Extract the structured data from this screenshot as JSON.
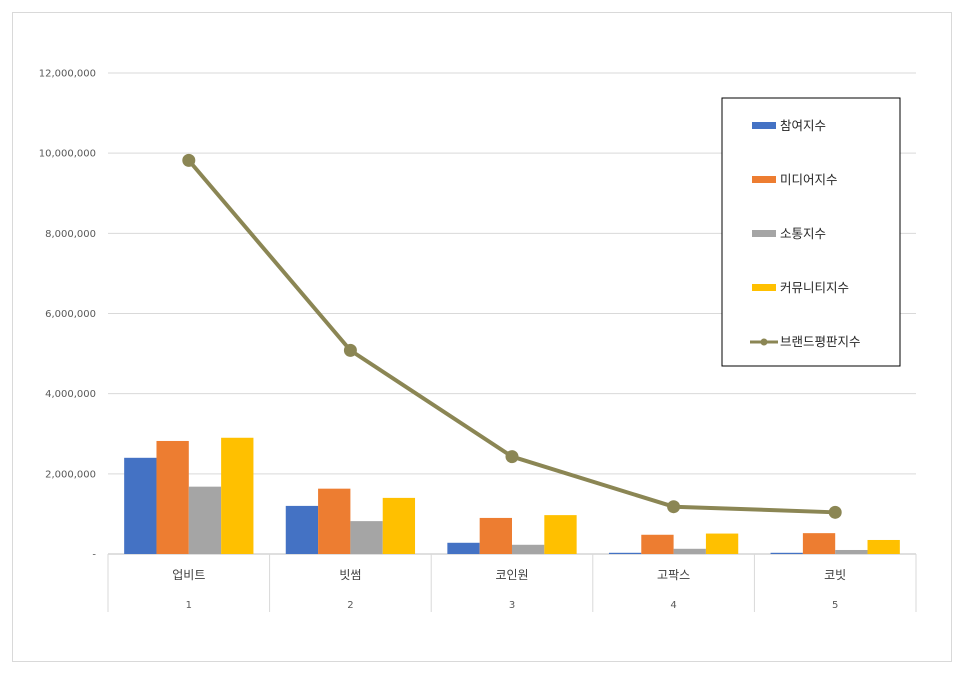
{
  "chart_data": {
    "type": "bar",
    "categories": [
      "업비트",
      "빗썸",
      "코인원",
      "고팍스",
      "코빗"
    ],
    "category_ranks": [
      "1",
      "2",
      "3",
      "4",
      "5"
    ],
    "y_ticks": [
      "-",
      "2,000,000",
      "4,000,000",
      "6,000,000",
      "8,000,000",
      "10,000,000",
      "12,000,000"
    ],
    "ylim": [
      0,
      12000000
    ],
    "grid": true,
    "legend_position": "top-right",
    "series": [
      {
        "name": "참여지수",
        "kind": "bar",
        "color": "#4472C4",
        "values": [
          2400000,
          1200000,
          280000,
          30000,
          30000
        ]
      },
      {
        "name": "미디어지수",
        "kind": "bar",
        "color": "#ED7D31",
        "values": [
          2820000,
          1630000,
          900000,
          480000,
          520000
        ]
      },
      {
        "name": "소통지수",
        "kind": "bar",
        "color": "#A5A5A5",
        "values": [
          1680000,
          820000,
          230000,
          130000,
          100000
        ]
      },
      {
        "name": "커뮤니티지수",
        "kind": "bar",
        "color": "#FFC000",
        "values": [
          2900000,
          1400000,
          970000,
          510000,
          350000
        ]
      },
      {
        "name": "브랜드평판지수",
        "kind": "line",
        "color": "#8B8654",
        "values": [
          9820000,
          5080000,
          2430000,
          1180000,
          1040000
        ]
      }
    ]
  }
}
